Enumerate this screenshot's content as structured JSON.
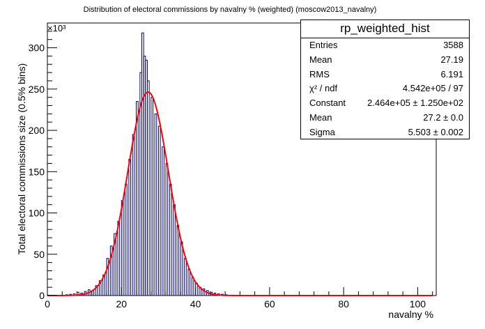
{
  "chart_data": {
    "type": "histogram",
    "title": "Distribution of electoral commissions by navalny % (weighted) (moscow2013_navalny)",
    "xlabel": "navalny %",
    "ylabel": "Total electoral commissions size (0.5% bins)",
    "y_multiplier_label": "×10³",
    "xlim": [
      0,
      105
    ],
    "ylim": [
      0,
      330000
    ],
    "x_ticks": [
      0,
      20,
      40,
      60,
      80,
      100
    ],
    "y_ticks": [
      0,
      50,
      100,
      150,
      200,
      250,
      300
    ],
    "bin_width": 0.5,
    "line_color": "#00007f",
    "fit_color": "#ff0000",
    "bins": [
      [
        5,
        1000
      ],
      [
        6,
        1500
      ],
      [
        7,
        2000
      ],
      [
        8,
        4000
      ],
      [
        9,
        3000
      ],
      [
        10,
        5000
      ],
      [
        11,
        7000
      ],
      [
        12,
        6000
      ],
      [
        13,
        12000
      ],
      [
        14,
        18000
      ],
      [
        15,
        25000
      ],
      [
        16,
        45000
      ],
      [
        17,
        60000
      ],
      [
        18,
        75000
      ],
      [
        19,
        90000
      ],
      [
        20,
        115000
      ],
      [
        21,
        135000
      ],
      [
        22,
        165000
      ],
      [
        23,
        195000
      ],
      [
        24,
        235000
      ],
      [
        25,
        270000
      ],
      [
        25.5,
        318000
      ],
      [
        26,
        290000
      ],
      [
        26.5,
        285000
      ],
      [
        27,
        260000
      ],
      [
        28,
        240000
      ],
      [
        29,
        220000
      ],
      [
        30,
        205000
      ],
      [
        31,
        180000
      ],
      [
        32,
        160000
      ],
      [
        33,
        135000
      ],
      [
        34,
        110000
      ],
      [
        35,
        85000
      ],
      [
        36,
        65000
      ],
      [
        37,
        45000
      ],
      [
        38,
        32000
      ],
      [
        39,
        22000
      ],
      [
        40,
        15000
      ],
      [
        41,
        10000
      ],
      [
        42,
        8000
      ],
      [
        43,
        6000
      ],
      [
        44,
        4000
      ],
      [
        45,
        3000
      ],
      [
        46,
        2000
      ],
      [
        47,
        1500
      ],
      [
        48,
        1000
      ],
      [
        50,
        500
      ],
      [
        55,
        300
      ]
    ],
    "fit": {
      "function": "gaus",
      "constant": 246400,
      "mean": 27.2,
      "sigma": 5.503
    }
  },
  "stats_box": {
    "name": "rp_weighted_hist",
    "rows": [
      {
        "label": "Entries",
        "value": "3588"
      },
      {
        "label": "Mean",
        "value": "27.19"
      },
      {
        "label": "RMS",
        "value": "6.191"
      },
      {
        "label": "χ² / ndf",
        "value": "4.542e+05 / 97"
      },
      {
        "label": "Constant",
        "value": "2.464e+05  ± 1.250e+02"
      },
      {
        "label": "Mean",
        "value": "27.2  ± 0.0"
      },
      {
        "label": "Sigma",
        "value": "5.503  ± 0.002"
      }
    ]
  }
}
